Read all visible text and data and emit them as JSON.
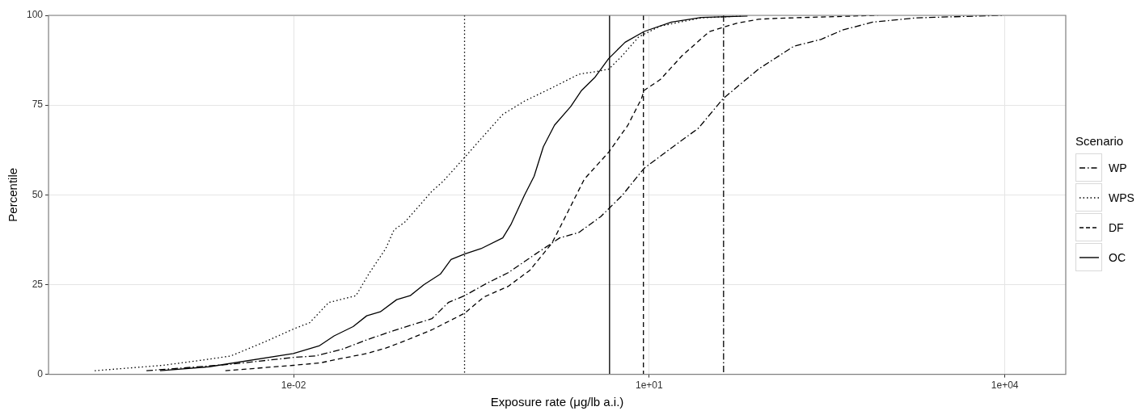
{
  "chart_data": {
    "type": "line",
    "xlabel": "Exposure rate (μg/lb a.i.)",
    "ylabel": "Percentile",
    "legend_title": "Scenario",
    "legend": "right",
    "grid": true,
    "log": "x",
    "marker": "none",
    "xlim": [
      8.57e-05,
      32660
    ],
    "xticks": [
      {
        "value": 0.01,
        "label": "1e-02"
      },
      {
        "value": 10,
        "label": "1e+01"
      },
      {
        "value": 10000,
        "label": "1e+04"
      }
    ],
    "ylim": [
      0,
      100
    ],
    "yticks": [
      0,
      25,
      50,
      75,
      100
    ],
    "series": [
      {
        "name": "WP",
        "color": "#000000",
        "line_style": "dashdot",
        "x": [
          0.000574,
          0.00295,
          0.00995,
          0.0152,
          0.0258,
          0.0414,
          0.0703,
          0.147,
          0.202,
          0.277,
          0.424,
          0.646,
          1.1,
          1.76,
          2.55,
          3.89,
          5.94,
          9.06,
          13.8,
          26.1,
          42.0,
          83.4,
          166,
          281,
          428,
          766,
          1780,
          9680
        ],
        "values": [
          1.0,
          2.8,
          4.7,
          5.1,
          7.0,
          9.6,
          12.2,
          15.5,
          20.0,
          21.9,
          25.3,
          28.3,
          33.5,
          38.0,
          39.5,
          43.9,
          49.9,
          57.4,
          61.9,
          68.6,
          76.8,
          85.0,
          91.4,
          93.3,
          95.9,
          98.1,
          99.3,
          100
        ]
      },
      {
        "name": "WPS",
        "color": "#000000",
        "line_style": "dotted",
        "x": [
          0.00021,
          0.000788,
          0.00174,
          0.00295,
          0.00587,
          0.00995,
          0.0137,
          0.0198,
          0.0336,
          0.0437,
          0.0599,
          0.0703,
          0.0869,
          0.147,
          0.182,
          0.277,
          0.381,
          0.582,
          0.887,
          1.51,
          2.55,
          3.5,
          4.56,
          5.94,
          8.15,
          12.4,
          27.5,
          60.4
        ],
        "values": [
          1.0,
          2.5,
          4.0,
          5.1,
          9.2,
          12.6,
          14.4,
          20.0,
          21.9,
          28.3,
          35.0,
          40.2,
          42.4,
          51.0,
          53.7,
          60.4,
          65.6,
          72.4,
          76.1,
          79.8,
          83.6,
          84.3,
          85.0,
          88.8,
          94.0,
          97.0,
          99.3,
          99.8
        ]
      },
      {
        "name": "DF",
        "color": "#000000",
        "line_style": "dashed",
        "x": [
          0.00266,
          0.00995,
          0.0169,
          0.0244,
          0.0414,
          0.0599,
          0.0914,
          0.147,
          0.277,
          0.402,
          0.646,
          0.986,
          1.51,
          2.07,
          2.84,
          4.56,
          6.61,
          8.61,
          9.06,
          12.4,
          19.0,
          32.2,
          54.6,
          83.4,
          127,
          851
        ],
        "values": [
          1.0,
          2.5,
          3.2,
          4.3,
          5.8,
          7.3,
          9.6,
          12.4,
          17.0,
          21.5,
          24.5,
          29.0,
          36.5,
          45.4,
          54.4,
          61.9,
          69.4,
          76.8,
          79.1,
          82.1,
          88.8,
          95.5,
          97.8,
          98.9,
          99.2,
          100
        ]
      },
      {
        "name": "OC",
        "color": "#000000",
        "line_style": "solid",
        "x": [
          0.000748,
          0.00194,
          0.00995,
          0.0164,
          0.022,
          0.0318,
          0.0414,
          0.0539,
          0.0741,
          0.0964,
          0.126,
          0.173,
          0.213,
          0.277,
          0.381,
          0.582,
          0.681,
          0.887,
          1.07,
          1.28,
          1.59,
          2.18,
          2.69,
          3.5,
          4.56,
          6.26,
          9.06,
          15.4,
          27.5,
          67.5
        ],
        "values": [
          1.0,
          2.1,
          5.8,
          7.9,
          10.7,
          13.3,
          16.3,
          17.4,
          20.8,
          21.9,
          25.0,
          27.9,
          32.0,
          33.5,
          35.0,
          38.0,
          41.7,
          49.9,
          55.2,
          63.4,
          69.4,
          74.6,
          79.1,
          82.8,
          88.0,
          92.5,
          95.5,
          98.1,
          99.4,
          99.8
        ]
      }
    ],
    "ref_lines": [
      {
        "axis": "x",
        "value": 0.277,
        "color": "#000000",
        "line_style": "dotted"
      },
      {
        "axis": "x",
        "value": 4.63,
        "color": "#000000",
        "line_style": "solid"
      },
      {
        "axis": "x",
        "value": 8.94,
        "color": "#000000",
        "line_style": "dashed"
      },
      {
        "axis": "x",
        "value": 42.4,
        "color": "#000000",
        "line_style": "dashdot"
      }
    ]
  }
}
